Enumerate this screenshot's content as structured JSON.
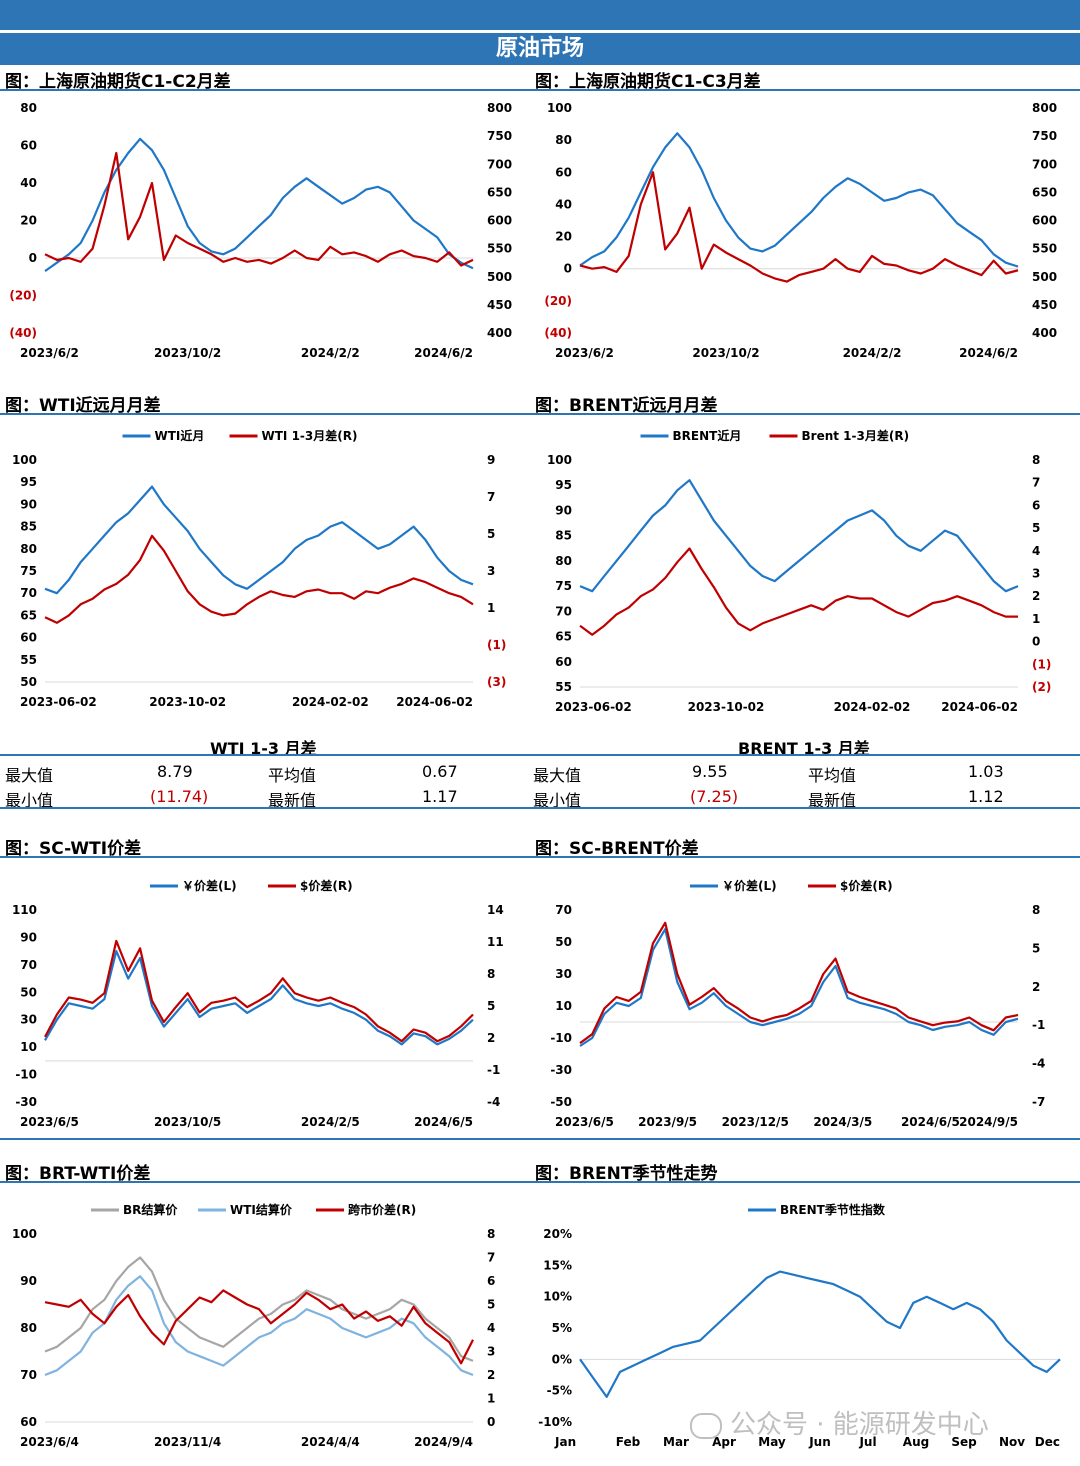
{
  "header": {
    "banner": "原油市场"
  },
  "colors": {
    "blue": "#1f77c8",
    "red": "#c00000",
    "gray": "#a6a6a6",
    "lightblue": "#7fb3e0"
  },
  "panels": {
    "p1": {
      "title": "图：上海原油期货C1-C2月差"
    },
    "p2": {
      "title": "图：上海原油期货C1-C3月差"
    },
    "p3": {
      "title": "图：WTI近远月月差"
    },
    "p4": {
      "title": "图：BRENT近远月月差"
    },
    "p5": {
      "title": "图：SC-WTI价差"
    },
    "p6": {
      "title": "图：SC-BRENT价差"
    },
    "p7": {
      "title": "图：BRT-WTI价差"
    },
    "p8": {
      "title": "图：BRENT季节性走势"
    }
  },
  "stats": {
    "wti": {
      "header": "WTI 1-3 月差",
      "max_label": "最大值",
      "max": "8.79",
      "avg_label": "平均值",
      "avg": "0.67",
      "min_label": "最小值",
      "min": "(11.74)",
      "latest_label": "最新值",
      "latest": "1.17"
    },
    "brent": {
      "header": "BRENT 1-3 月差",
      "max_label": "最大值",
      "max": "9.55",
      "avg_label": "平均值",
      "avg": "1.03",
      "min_label": "最小值",
      "min": "(7.25)",
      "latest_label": "最新值",
      "latest": "1.12"
    }
  },
  "watermark": "公众号 · 能源研发中心",
  "chart_data": [
    {
      "id": "c1",
      "type": "line",
      "x_ticks": [
        "2023/6/2",
        "2023/10/2",
        "2024/2/2",
        "2024/6/2"
      ],
      "y_left": {
        "min": -40,
        "max": 80,
        "ticks": [
          "80",
          "60",
          "40",
          "20",
          "0",
          "(20)",
          "(40)"
        ]
      },
      "y_right": {
        "min": 400,
        "max": 800,
        "ticks": [
          "800",
          "750",
          "700",
          "650",
          "600",
          "550",
          "500",
          "450",
          "400"
        ]
      },
      "series": [
        {
          "axis": "right",
          "color": "#1f77c8",
          "values": [
            510,
            525,
            540,
            560,
            600,
            650,
            690,
            720,
            745,
            725,
            690,
            640,
            590,
            560,
            545,
            540,
            550,
            570,
            590,
            610,
            640,
            660,
            675,
            660,
            645,
            630,
            640,
            655,
            660,
            650,
            625,
            600,
            585,
            570,
            540,
            525,
            515
          ]
        },
        {
          "axis": "left",
          "color": "#c00000",
          "values": [
            2,
            -1,
            0,
            -2,
            5,
            28,
            56,
            10,
            22,
            40,
            -1,
            12,
            8,
            5,
            2,
            -2,
            0,
            -2,
            -1,
            -3,
            0,
            4,
            0,
            -1,
            6,
            2,
            3,
            1,
            -2,
            2,
            4,
            1,
            0,
            -2,
            3,
            -4,
            -1
          ]
        }
      ]
    },
    {
      "id": "c2",
      "type": "line",
      "x_ticks": [
        "2023/6/2",
        "2023/10/2",
        "2024/2/2",
        "2024/6/2"
      ],
      "y_left": {
        "min": -40,
        "max": 100,
        "ticks": [
          "100",
          "80",
          "60",
          "40",
          "20",
          "0",
          "(20)",
          "(40)"
        ]
      },
      "y_right": {
        "min": 400,
        "max": 800,
        "ticks": [
          "800",
          "750",
          "700",
          "650",
          "600",
          "550",
          "500",
          "450",
          "400"
        ]
      },
      "series": [
        {
          "axis": "right",
          "color": "#1f77c8",
          "values": [
            520,
            535,
            545,
            570,
            605,
            650,
            695,
            730,
            755,
            730,
            690,
            640,
            600,
            570,
            550,
            545,
            555,
            575,
            595,
            615,
            640,
            660,
            675,
            665,
            650,
            635,
            640,
            650,
            655,
            645,
            620,
            595,
            580,
            565,
            540,
            525,
            518
          ]
        },
        {
          "axis": "left",
          "color": "#c00000",
          "values": [
            2,
            0,
            1,
            -2,
            8,
            40,
            60,
            12,
            22,
            38,
            0,
            15,
            10,
            6,
            2,
            -3,
            -6,
            -8,
            -4,
            -2,
            0,
            6,
            0,
            -2,
            8,
            3,
            2,
            -1,
            -3,
            0,
            6,
            2,
            -1,
            -4,
            5,
            -3,
            -1
          ]
        }
      ]
    },
    {
      "id": "c3",
      "type": "line",
      "x_ticks": [
        "2023-06-02",
        "2023-10-02",
        "2024-02-02",
        "2024-06-02"
      ],
      "y_left": {
        "min": 50,
        "max": 100,
        "ticks": [
          "100",
          "95",
          "90",
          "85",
          "80",
          "75",
          "70",
          "65",
          "60",
          "55",
          "50"
        ]
      },
      "y_right": {
        "min": -3,
        "max": 9,
        "ticks": [
          "9",
          "7",
          "5",
          "3",
          "1",
          "(1)",
          "(3)"
        ]
      },
      "legend": [
        {
          "label": "WTI近月",
          "color": "#1f77c8"
        },
        {
          "label": "WTI 1-3月差(R)",
          "color": "#c00000"
        }
      ],
      "series": [
        {
          "name": "WTI近月",
          "axis": "left",
          "color": "#1f77c8",
          "values": [
            71,
            70,
            73,
            77,
            80,
            83,
            86,
            88,
            91,
            94,
            90,
            87,
            84,
            80,
            77,
            74,
            72,
            71,
            73,
            75,
            77,
            80,
            82,
            83,
            85,
            86,
            84,
            82,
            80,
            81,
            83,
            85,
            82,
            78,
            75,
            73,
            72
          ]
        },
        {
          "name": "WTI 1-3月差(R)",
          "axis": "right",
          "color": "#c00000",
          "values": [
            0.5,
            0.2,
            0.6,
            1.2,
            1.5,
            2.0,
            2.3,
            2.8,
            3.6,
            4.9,
            4.1,
            3.0,
            1.9,
            1.2,
            0.8,
            0.6,
            0.7,
            1.2,
            1.6,
            1.9,
            1.7,
            1.6,
            1.9,
            2.0,
            1.8,
            1.8,
            1.5,
            1.9,
            1.8,
            2.1,
            2.3,
            2.6,
            2.4,
            2.1,
            1.8,
            1.6,
            1.2
          ]
        }
      ]
    },
    {
      "id": "c4",
      "type": "line",
      "x_ticks": [
        "2023-06-02",
        "2023-10-02",
        "2024-02-02",
        "2024-06-02"
      ],
      "y_left": {
        "min": 55,
        "max": 100,
        "ticks": [
          "100",
          "95",
          "90",
          "85",
          "80",
          "75",
          "70",
          "65",
          "60",
          "55"
        ]
      },
      "y_right": {
        "min": -2,
        "max": 8,
        "ticks": [
          "8",
          "7",
          "6",
          "5",
          "4",
          "3",
          "2",
          "1",
          "0",
          "(1)",
          "(2)"
        ]
      },
      "legend": [
        {
          "label": "BRENT近月",
          "color": "#1f77c8"
        },
        {
          "label": "Brent 1-3月差(R)",
          "color": "#c00000"
        }
      ],
      "series": [
        {
          "name": "BRENT近月",
          "axis": "left",
          "color": "#1f77c8",
          "values": [
            75,
            74,
            77,
            80,
            83,
            86,
            89,
            91,
            94,
            96,
            92,
            88,
            85,
            82,
            79,
            77,
            76,
            78,
            80,
            82,
            84,
            86,
            88,
            89,
            90,
            88,
            85,
            83,
            82,
            84,
            86,
            85,
            82,
            79,
            76,
            74,
            75
          ]
        },
        {
          "name": "Brent 1-3月差(R)",
          "axis": "right",
          "color": "#c00000",
          "values": [
            0.7,
            0.3,
            0.7,
            1.2,
            1.5,
            2.0,
            2.3,
            2.8,
            3.5,
            4.1,
            3.2,
            2.4,
            1.5,
            0.8,
            0.5,
            0.8,
            1.0,
            1.2,
            1.4,
            1.6,
            1.4,
            1.8,
            2.0,
            1.9,
            1.9,
            1.6,
            1.3,
            1.1,
            1.4,
            1.7,
            1.8,
            2.0,
            1.8,
            1.6,
            1.3,
            1.1,
            1.1
          ]
        }
      ]
    },
    {
      "id": "c5",
      "type": "line",
      "x_ticks": [
        "2023/6/5",
        "2023/10/5",
        "2024/2/5",
        "2024/6/5"
      ],
      "y_left": {
        "min": -30,
        "max": 110,
        "ticks": [
          "110",
          "90",
          "70",
          "50",
          "30",
          "10",
          "-10",
          "-30"
        ]
      },
      "y_right": {
        "min": -4,
        "max": 14,
        "ticks": [
          "14",
          "11",
          "8",
          "5",
          "2",
          "-1",
          "-4"
        ]
      },
      "legend": [
        {
          "label": "￥价差(L)",
          "color": "#1f77c8"
        },
        {
          "label": "$价差(R)",
          "color": "#c00000"
        }
      ],
      "series": [
        {
          "name": "￥价差(L)",
          "axis": "left",
          "color": "#1f77c8",
          "values": [
            15,
            30,
            42,
            40,
            38,
            45,
            80,
            60,
            75,
            40,
            25,
            35,
            45,
            32,
            38,
            40,
            42,
            35,
            40,
            45,
            55,
            45,
            42,
            40,
            42,
            38,
            35,
            30,
            22,
            18,
            12,
            20,
            18,
            12,
            16,
            22,
            30
          ]
        },
        {
          "name": "$价差(R)",
          "axis": "right",
          "color": "#c00000",
          "values": [
            2.1,
            4.2,
            5.8,
            5.6,
            5.3,
            6.2,
            11.1,
            8.3,
            10.4,
            5.5,
            3.5,
            4.9,
            6.2,
            4.4,
            5.3,
            5.5,
            5.8,
            4.9,
            5.5,
            6.2,
            7.6,
            6.2,
            5.8,
            5.5,
            5.8,
            5.3,
            4.9,
            4.2,
            3.1,
            2.5,
            1.7,
            2.8,
            2.5,
            1.7,
            2.2,
            3.1,
            4.2
          ]
        }
      ]
    },
    {
      "id": "c6",
      "type": "line",
      "x_ticks": [
        "2023/6/5",
        "2023/9/5",
        "2023/12/5",
        "2024/3/5",
        "2024/6/5",
        "2024/9/5"
      ],
      "y_left": {
        "min": -50,
        "max": 70,
        "ticks": [
          "70",
          "50",
          "30",
          "10",
          "-10",
          "-30",
          "-50"
        ]
      },
      "y_right": {
        "min": -7,
        "max": 8,
        "ticks": [
          "8",
          "5",
          "2",
          "-1",
          "-4",
          "-7"
        ]
      },
      "legend": [
        {
          "label": "￥价差(L)",
          "color": "#1f77c8"
        },
        {
          "label": "$价差(R)",
          "color": "#c00000"
        }
      ],
      "series": [
        {
          "name": "￥价差(L)",
          "axis": "left",
          "color": "#1f77c8",
          "values": [
            -15,
            -10,
            5,
            12,
            10,
            15,
            45,
            58,
            25,
            8,
            12,
            18,
            10,
            5,
            0,
            -2,
            0,
            2,
            5,
            10,
            25,
            35,
            15,
            12,
            10,
            8,
            5,
            0,
            -2,
            -5,
            -3,
            -2,
            0,
            -5,
            -8,
            0,
            2
          ]
        },
        {
          "name": "$价差(R)",
          "axis": "right",
          "color": "#c00000",
          "values": [
            -2.4,
            -1.7,
            0.3,
            1.2,
            0.9,
            1.6,
            5.4,
            7.0,
            3.0,
            0.6,
            1.2,
            1.9,
            0.9,
            0.3,
            -0.4,
            -0.7,
            -0.4,
            -0.2,
            0.3,
            0.9,
            3.0,
            4.2,
            1.6,
            1.2,
            0.9,
            0.6,
            0.3,
            -0.4,
            -0.7,
            -1.0,
            -0.8,
            -0.7,
            -0.4,
            -1.0,
            -1.4,
            -0.4,
            -0.2
          ]
        }
      ]
    },
    {
      "id": "c7",
      "type": "line",
      "x_ticks": [
        "2023/6/4",
        "2023/11/4",
        "2024/4/4",
        "2024/9/4"
      ],
      "y_left": {
        "min": 60,
        "max": 100,
        "ticks": [
          "100",
          "90",
          "80",
          "70",
          "60"
        ]
      },
      "y_right": {
        "min": 0,
        "max": 8,
        "ticks": [
          "8",
          "7",
          "6",
          "5",
          "4",
          "3",
          "2",
          "1",
          "0"
        ]
      },
      "legend": [
        {
          "label": "BR结算价",
          "color": "#a6a6a6"
        },
        {
          "label": "WTI结算价",
          "color": "#7fb3e0"
        },
        {
          "label": "跨市价差(R)",
          "color": "#c00000"
        }
      ],
      "series": [
        {
          "name": "BR结算价",
          "axis": "left",
          "color": "#a6a6a6",
          "values": [
            75,
            76,
            78,
            80,
            84,
            86,
            90,
            93,
            95,
            92,
            86,
            82,
            80,
            78,
            77,
            76,
            78,
            80,
            82,
            83,
            85,
            86,
            88,
            87,
            86,
            84,
            83,
            82,
            83,
            84,
            86,
            85,
            82,
            80,
            78,
            74,
            73
          ]
        },
        {
          "name": "WTI结算价",
          "axis": "left",
          "color": "#7fb3e0",
          "values": [
            70,
            71,
            73,
            75,
            79,
            81,
            86,
            89,
            91,
            88,
            81,
            77,
            75,
            74,
            73,
            72,
            74,
            76,
            78,
            79,
            81,
            82,
            84,
            83,
            82,
            80,
            79,
            78,
            79,
            80,
            82,
            81,
            78,
            76,
            74,
            71,
            70
          ]
        },
        {
          "name": "跨市价差(R)",
          "axis": "right",
          "color": "#c00000",
          "values": [
            5.1,
            5.0,
            4.9,
            5.2,
            4.6,
            4.2,
            4.9,
            5.4,
            4.5,
            3.8,
            3.3,
            4.3,
            4.8,
            5.3,
            5.1,
            5.6,
            5.3,
            5.0,
            4.8,
            4.2,
            4.6,
            5.0,
            5.5,
            5.2,
            4.8,
            5.0,
            4.4,
            4.7,
            4.3,
            4.5,
            4.1,
            4.9,
            4.2,
            3.8,
            3.4,
            2.5,
            3.5
          ]
        }
      ]
    },
    {
      "id": "c8",
      "type": "line",
      "x_ticks": [
        "Jan",
        "Feb",
        "Mar",
        "Apr",
        "May",
        "Jun",
        "Jul",
        "Aug",
        "Sep",
        "Nov",
        "Dec"
      ],
      "y_left": {
        "min": -10,
        "max": 20,
        "ticks": [
          "20%",
          "15%",
          "10%",
          "5%",
          "0%",
          "-5%",
          "-10%"
        ]
      },
      "legend": [
        {
          "label": "BRENT季节性指数",
          "color": "#1f77c8"
        }
      ],
      "series": [
        {
          "name": "BRENT季节性指数",
          "axis": "left",
          "color": "#1f77c8",
          "values": [
            0,
            -3,
            -6,
            -2,
            -1,
            0,
            1,
            2,
            2.5,
            3,
            5,
            7,
            9,
            11,
            13,
            14,
            13.5,
            13,
            12.5,
            12,
            11,
            10,
            8,
            6,
            5,
            9,
            10,
            9,
            8,
            9,
            8,
            6,
            3,
            1,
            -1,
            -2,
            0
          ]
        }
      ]
    }
  ]
}
